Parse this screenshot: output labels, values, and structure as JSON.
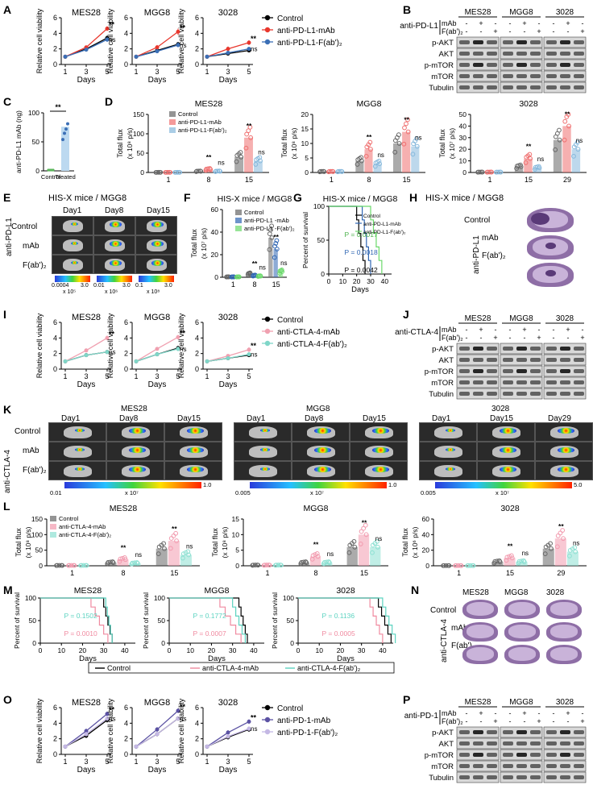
{
  "labels": [
    "A",
    "B",
    "C",
    "D",
    "E",
    "F",
    "G",
    "H",
    "I",
    "J",
    "K",
    "L",
    "M",
    "N",
    "O",
    "P"
  ],
  "cell_lines": [
    "MES28",
    "MGG8",
    "3028"
  ],
  "common": {
    "days": "Days",
    "viability_ylabel": "Relative cell viability",
    "sig": "**",
    "ns": "ns",
    "control": "Control",
    "mAb": "mAb",
    "fab": "F(ab')₂",
    "total_flux": "Total flux",
    "survival_ylabel": "Percent of survival"
  },
  "panelA": {
    "legend": [
      "Control",
      "anti-PD-L1-mAb",
      "anti-PD-L1-F(ab')₂"
    ],
    "colors": [
      "#000000",
      "#e8372d",
      "#3b6fb6"
    ]
  },
  "wb": {
    "rows": [
      "p-AKT",
      "AKT",
      "p-mTOR",
      "mTOR",
      "Tubulin"
    ],
    "B_prefix": "anti-PD-L1",
    "J_prefix": "anti-CTLA-4",
    "P_prefix": "anti-PD-1",
    "signs_mab": [
      "-",
      "+",
      "-",
      "-",
      "+",
      "-",
      "-",
      "+",
      "-"
    ],
    "signs_fab": [
      "-",
      "-",
      "+",
      "-",
      "-",
      "+",
      "-",
      "-",
      "+"
    ]
  },
  "panelC": {
    "ylabel": "anti-PD-L1 mAb (ng)",
    "categories": [
      "Control",
      "Treated"
    ],
    "ticks": [
      "0",
      "50",
      "100"
    ]
  },
  "panelD": {
    "legend": [
      "Control",
      "anti-PD-L1-mAb",
      "anti-PD-L1-F(ab')₂"
    ],
    "units": [
      "(x 10⁸ p/s)",
      "(x 10⁸ p/s)",
      "(x 10⁷ p/s)"
    ],
    "days": [
      [
        "1",
        "8",
        "15"
      ],
      [
        "1",
        "8",
        "15"
      ],
      [
        "1",
        "15",
        "29"
      ]
    ]
  },
  "panelE": {
    "title": "HIS-X mice / MGG8",
    "cols": [
      "Day1",
      "Day8",
      "Day15"
    ],
    "rows": [
      "Control",
      "mAb",
      "F(ab')₂"
    ],
    "group": "anti-PD-L1",
    "scales": [
      [
        "0.0004",
        "3.0",
        "x 10⁵"
      ],
      [
        "0.01",
        "3.0",
        "x 10⁶"
      ],
      [
        "0.1",
        "3.0",
        "x 10⁸"
      ]
    ]
  },
  "panelF": {
    "title": "HIS-X mice / MGG8",
    "legend": [
      "Control",
      "anti-PD-L1 -mAb",
      "anti-PD-L1 -F(ab')₂"
    ],
    "unit": "(x 10⁷ p/s)",
    "days": [
      "1",
      "8",
      "15"
    ]
  },
  "panelG": {
    "title": "HIS-X mice / MGG8",
    "legend": [
      "Control",
      "anti-PD-L1-mAb",
      "anti-PD-L1-F(ab')₂"
    ],
    "pvals": [
      "P = 0.0017",
      "P = 0.0018",
      "P = 0.0042"
    ],
    "xticks": [
      "0",
      "10",
      "20",
      "30",
      "40"
    ],
    "yticks": [
      "0",
      "50",
      "100"
    ]
  },
  "panelH": {
    "title": "HIS-X mice / MGG8",
    "rows": [
      "Control",
      "mAb",
      "F(ab')₂"
    ],
    "group": "anti-PD-L1"
  },
  "panelI": {
    "legend": [
      "Control",
      "anti-CTLA-4-mAb",
      "anti-CTLA-4-F(ab')₂"
    ],
    "colors": [
      "#000000",
      "#f0a0b0",
      "#7fd6c8"
    ]
  },
  "panelK": {
    "groups": [
      {
        "name": "MES28",
        "cols": [
          "Day1",
          "Day8",
          "Day15"
        ],
        "scale": [
          "0.01",
          "x 10⁷",
          "1.0"
        ]
      },
      {
        "name": "MGG8",
        "cols": [
          "Day1",
          "Day8",
          "Day15"
        ],
        "scale": [
          "0.005",
          "x 10⁷",
          "1.0"
        ]
      },
      {
        "name": "3028",
        "cols": [
          "Day1",
          "Day15",
          "Day29"
        ],
        "scale": [
          "0.005",
          "x 10⁷",
          "5.0"
        ]
      }
    ],
    "rows": [
      "Control",
      "mAb",
      "F(ab')₂"
    ],
    "group": "anti-CTLA-4"
  },
  "panelL": {
    "legend": [
      "Control",
      "anti-CTLA-4-mAb",
      "anti-CTLA-4-F(ab')₂"
    ],
    "units": [
      "(x 10⁸ p/s)",
      "(x 10⁸ p/s)",
      "(x 10⁶ p/s)"
    ],
    "days": [
      [
        "1",
        "8",
        "15"
      ],
      [
        "1",
        "8",
        "15"
      ],
      [
        "1",
        "15",
        "29"
      ]
    ]
  },
  "panelM": {
    "pvals": [
      [
        "P = 0.1502",
        "P = 0.0010"
      ],
      [
        "P = 0.1772",
        "P = 0.0007"
      ],
      [
        "P = 0.1136",
        "P = 0.0005"
      ]
    ],
    "legend": [
      "Control",
      "anti-CTLA-4-mAb",
      "anti-CTLA-4-F(ab')₂"
    ]
  },
  "panelN": {
    "rows": [
      "Control",
      "mAb",
      "F(ab')₂"
    ],
    "group": "anti-CTLA-4"
  },
  "panelO": {
    "legend": [
      "Control",
      "anti-PD-1-mAb",
      "anti-PD-1-F(ab')₂"
    ],
    "colors": [
      "#000000",
      "#5b52a3",
      "#c4b8e4"
    ]
  }
}
